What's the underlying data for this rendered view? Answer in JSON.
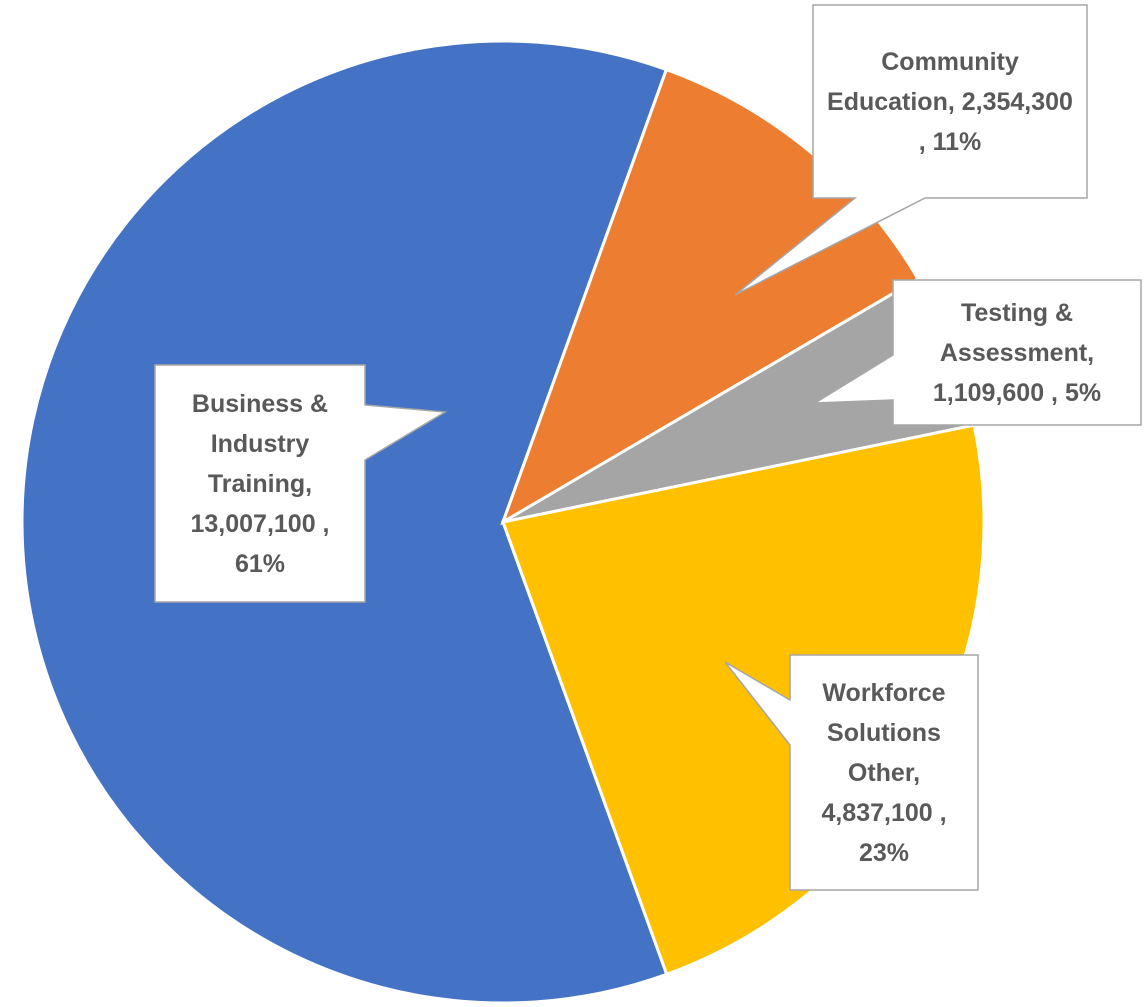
{
  "chart_data": {
    "type": "pie",
    "values": [
      13007100,
      2354300,
      1109600,
      4837100
    ],
    "value_labels": [
      "Business & Industry Training, 13,007,100 , 61%",
      "Community Education, 2,354,300 , 11%",
      "Testing & Assessment, 1,109,600 , 5%",
      "Workforce Solutions Other, 4,837,100 , 23%"
    ],
    "colors": [
      "#4472c4",
      "#ed7d31",
      "#a5a5a5",
      "#ffc000"
    ]
  }
}
